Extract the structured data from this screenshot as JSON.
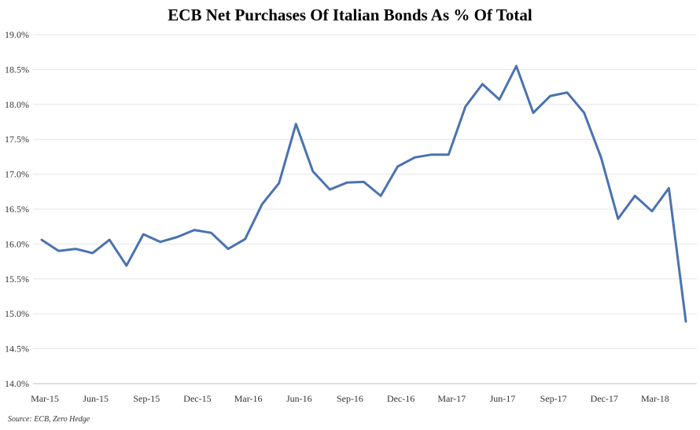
{
  "chart_data": {
    "type": "line",
    "title": "ECB Net Purchases Of Italian Bonds As % Of Total",
    "source": "Source: ECB, Zero Hedge",
    "ylim": [
      14.0,
      19.0
    ],
    "yticks": [
      "14.0%",
      "14.5%",
      "15.0%",
      "15.5%",
      "16.0%",
      "16.5%",
      "17.0%",
      "17.5%",
      "18.0%",
      "18.5%",
      "19.0%"
    ],
    "ytick_values": [
      14.0,
      14.5,
      15.0,
      15.5,
      16.0,
      16.5,
      17.0,
      17.5,
      18.0,
      18.5,
      19.0
    ],
    "xticks": [
      "Mar-15",
      "Jun-15",
      "Sep-15",
      "Dec-15",
      "Mar-16",
      "Jun-16",
      "Sep-16",
      "Dec-16",
      "Mar-17",
      "Jun-17",
      "Sep-17",
      "Dec-17",
      "Mar-18"
    ],
    "xtick_index": [
      0,
      3,
      6,
      9,
      12,
      15,
      18,
      21,
      24,
      27,
      30,
      33,
      36
    ],
    "grid": true,
    "legend": "none",
    "line_color": "#4a72b0",
    "series": [
      {
        "x": [
          "Mar-15",
          "Apr-15",
          "May-15",
          "Jun-15",
          "Jul-15",
          "Aug-15",
          "Sep-15",
          "Oct-15",
          "Nov-15",
          "Dec-15",
          "Jan-16",
          "Feb-16",
          "Mar-16",
          "Apr-16",
          "May-16",
          "Jun-16",
          "Jul-16",
          "Aug-16",
          "Sep-16",
          "Oct-16",
          "Nov-16",
          "Dec-16",
          "Jan-17",
          "Feb-17",
          "Mar-17",
          "Apr-17",
          "May-17",
          "Jun-17",
          "Jul-17",
          "Aug-17",
          "Sep-17",
          "Oct-17",
          "Nov-17",
          "Dec-17",
          "Jan-18",
          "Feb-18",
          "Mar-18",
          "Apr-18",
          "May-18"
        ],
        "values": [
          16.06,
          15.9,
          15.93,
          15.87,
          16.06,
          15.69,
          16.14,
          16.03,
          16.1,
          16.2,
          16.16,
          15.93,
          16.07,
          16.57,
          16.87,
          17.72,
          17.04,
          16.78,
          16.88,
          16.89,
          16.69,
          17.11,
          17.24,
          17.28,
          17.28,
          17.97,
          18.29,
          18.07,
          18.55,
          17.88,
          18.12,
          18.17,
          17.88,
          17.24,
          16.36,
          16.69,
          16.47,
          16.8,
          14.89
        ]
      }
    ]
  }
}
